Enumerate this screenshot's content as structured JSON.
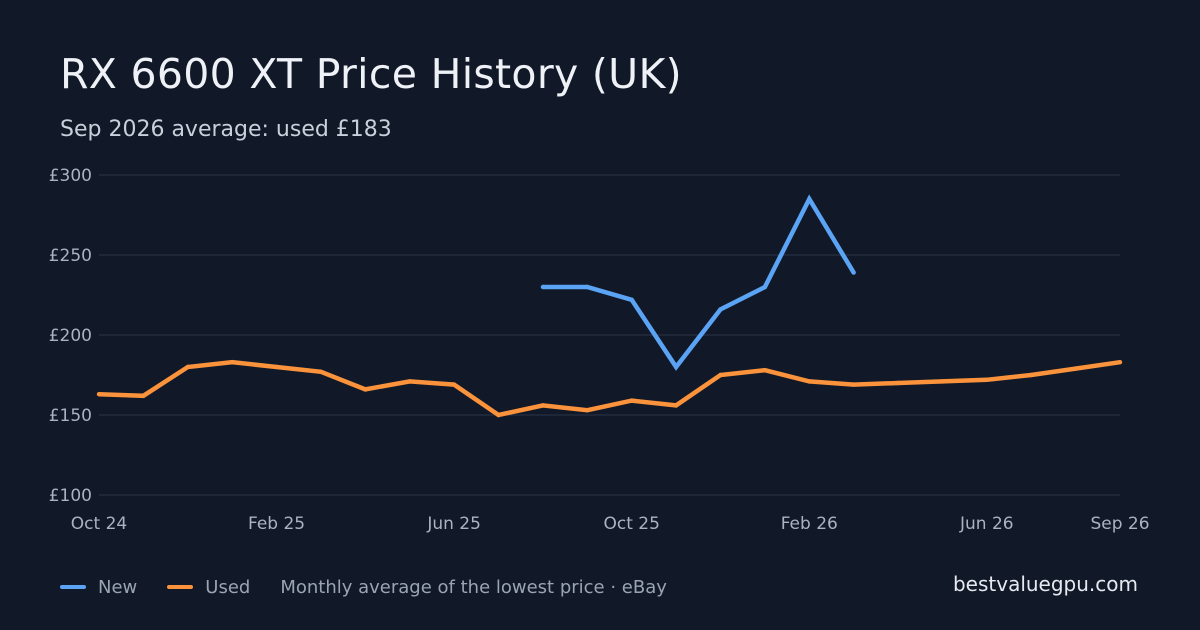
{
  "header": {
    "title": "RX 6600 XT Price History (UK)",
    "subtitle": "Sep 2026 average: used £183"
  },
  "legend": {
    "new_label": "New",
    "used_label": "Used",
    "note": "Monthly average of the lowest price · eBay"
  },
  "brand": "bestvaluegpu.com",
  "colors": {
    "background": "#111827",
    "grid": "#263042",
    "new": "#5ba4f5",
    "used": "#fb923c"
  },
  "chart_data": {
    "type": "line",
    "title": "RX 6600 XT Price History (UK)",
    "subtitle": "Sep 2026 average: used £183",
    "x": [
      "2024-10",
      "2024-11",
      "2024-12",
      "2025-01",
      "2025-02",
      "2025-03",
      "2025-04",
      "2025-05",
      "2025-06",
      "2025-07",
      "2025-08",
      "2025-09",
      "2025-10",
      "2025-11",
      "2025-12",
      "2026-01",
      "2026-02",
      "2026-03",
      "2026-04",
      "2026-05",
      "2026-06",
      "2026-07",
      "2026-08",
      "2026-09"
    ],
    "series": [
      {
        "name": "New",
        "color": "#5ba4f5",
        "values": [
          null,
          null,
          null,
          null,
          null,
          null,
          null,
          null,
          null,
          null,
          230,
          230,
          222,
          180,
          216,
          230,
          285,
          239,
          null,
          null,
          null,
          null,
          null,
          null
        ]
      },
      {
        "name": "Used",
        "color": "#fb923c",
        "values": [
          163,
          162,
          180,
          183,
          180,
          177,
          166,
          171,
          169,
          150,
          156,
          153,
          159,
          156,
          175,
          178,
          171,
          169,
          170,
          171,
          172,
          175,
          179,
          183
        ]
      }
    ],
    "ylim": [
      100,
      300
    ],
    "yticks": [
      100,
      150,
      200,
      250,
      300
    ],
    "ytick_labels": [
      "£100",
      "£150",
      "£200",
      "£250",
      "£300"
    ],
    "xticks": [
      "2024-10",
      "2025-02",
      "2025-06",
      "2025-10",
      "2026-02",
      "2026-06",
      "2026-09"
    ],
    "xtick_labels": [
      "Oct 24",
      "Feb 25",
      "Jun 25",
      "Oct 25",
      "Feb 26",
      "Jun 26",
      "Sep 26"
    ],
    "grid": true,
    "legend_position": "bottom-left"
  }
}
